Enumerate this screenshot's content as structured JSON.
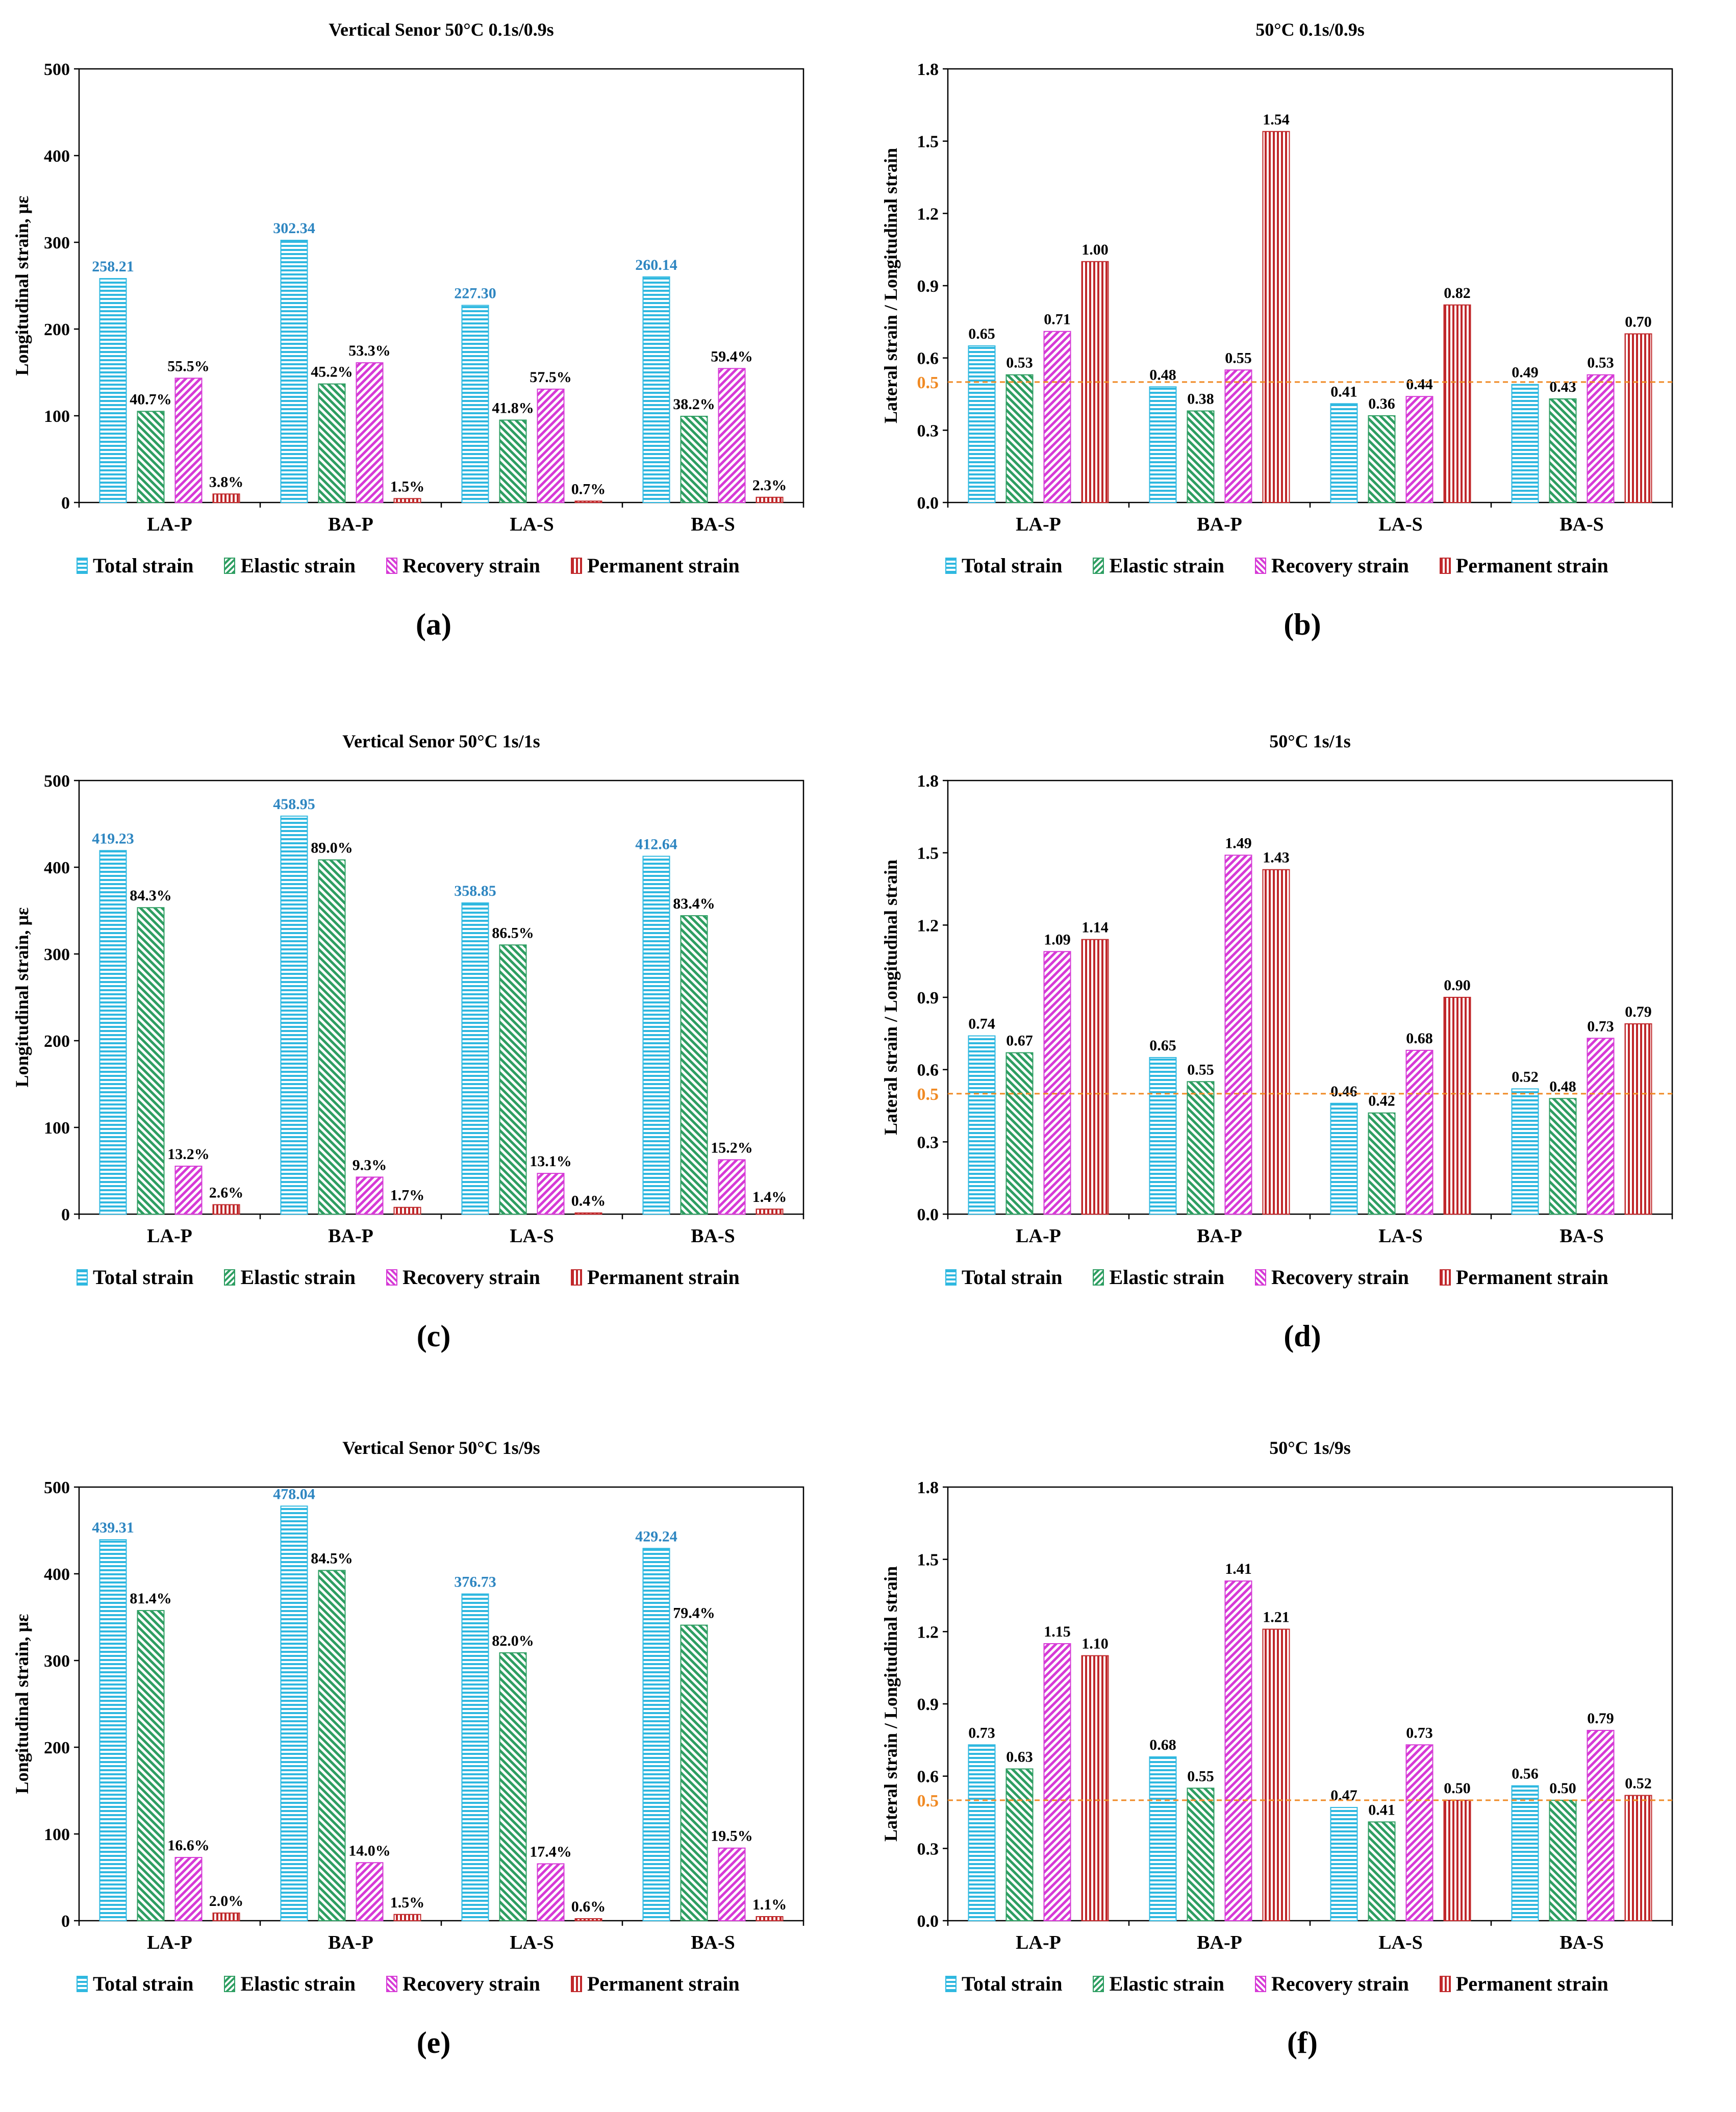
{
  "colors": {
    "total": "#2fb8e0",
    "elastic": "#2e9e62",
    "recovery": "#d63ad6",
    "permanent": "#c0282b",
    "total_label": "#2e86c1",
    "reference": "#f08a24"
  },
  "legend": [
    "Total strain",
    "Elastic strain",
    "Recovery strain",
    "Permanent strain"
  ],
  "chart_data": [
    {
      "panel": "(a)",
      "type": "bar",
      "title": "Vertical Senor  50°C 0.1s/0.9s",
      "ylabel": "Longitudinal strain, με",
      "xlabel": "",
      "ylim": [
        0,
        500
      ],
      "yticks": [
        "0",
        "100",
        "200",
        "300",
        "400",
        "500"
      ],
      "categories": [
        "LA-P",
        "BA-P",
        "LA-S",
        "BA-S"
      ],
      "series": [
        {
          "name": "Total strain",
          "values": [
            258.21,
            302.34,
            227.3,
            260.14
          ],
          "labels": [
            "258.21",
            "302.34",
            "227.30",
            "260.14"
          ]
        },
        {
          "name": "Elastic strain",
          "values": [
            105.1,
            136.7,
            95.0,
            99.4
          ],
          "labels": [
            "40.7%",
            "45.2%",
            "41.8%",
            "38.2%"
          ]
        },
        {
          "name": "Recovery strain",
          "values": [
            143.3,
            161.1,
            130.7,
            154.5
          ],
          "labels": [
            "55.5%",
            "53.3%",
            "57.5%",
            "59.4%"
          ]
        },
        {
          "name": "Permanent strain",
          "values": [
            9.8,
            4.5,
            1.6,
            6.0
          ],
          "labels": [
            "3.8%",
            "1.5%",
            "0.7%",
            "2.3%"
          ]
        }
      ]
    },
    {
      "panel": "(b)",
      "type": "bar",
      "title": "50°C 0.1s/0.9s",
      "ylabel": "Lateral strain / Longitudinal strain",
      "xlabel": "",
      "ylim": [
        0,
        1.8
      ],
      "yticks": [
        "0.0",
        "0.3",
        "0.6",
        "0.9",
        "1.2",
        "1.5",
        "1.8"
      ],
      "reference_line": {
        "value": 0.5,
        "label": "0.5"
      },
      "categories": [
        "LA-P",
        "BA-P",
        "LA-S",
        "BA-S"
      ],
      "series": [
        {
          "name": "Total strain",
          "values": [
            0.65,
            0.48,
            0.41,
            0.49
          ],
          "labels": [
            "0.65",
            "0.48",
            "0.41",
            "0.49"
          ]
        },
        {
          "name": "Elastic strain",
          "values": [
            0.53,
            0.38,
            0.36,
            0.43
          ],
          "labels": [
            "0.53",
            "0.38",
            "0.36",
            "0.43"
          ]
        },
        {
          "name": "Recovery strain",
          "values": [
            0.71,
            0.55,
            0.44,
            0.53
          ],
          "labels": [
            "0.71",
            "0.55",
            "0.44",
            "0.53"
          ]
        },
        {
          "name": "Permanent strain",
          "values": [
            1.0,
            1.54,
            0.82,
            0.7
          ],
          "labels": [
            "1.00",
            "1.54",
            "0.82",
            "0.70"
          ]
        }
      ]
    },
    {
      "panel": "(c)",
      "type": "bar",
      "title": "Vertical Senor  50°C 1s/1s",
      "ylabel": "Longitudinal strain, με",
      "xlabel": "",
      "ylim": [
        0,
        500
      ],
      "yticks": [
        "0",
        "100",
        "200",
        "300",
        "400",
        "500"
      ],
      "categories": [
        "LA-P",
        "BA-P",
        "LA-S",
        "BA-S"
      ],
      "series": [
        {
          "name": "Total strain",
          "values": [
            419.23,
            458.95,
            358.85,
            412.64
          ],
          "labels": [
            "419.23",
            "458.95",
            "358.85",
            "412.64"
          ]
        },
        {
          "name": "Elastic strain",
          "values": [
            353.4,
            408.5,
            310.4,
            344.1
          ],
          "labels": [
            "84.3%",
            "89.0%",
            "86.5%",
            "83.4%"
          ]
        },
        {
          "name": "Recovery strain",
          "values": [
            55.3,
            42.7,
            47.0,
            62.7
          ],
          "labels": [
            "13.2%",
            "9.3%",
            "13.1%",
            "15.2%"
          ]
        },
        {
          "name": "Permanent strain",
          "values": [
            10.9,
            7.8,
            1.4,
            5.8
          ],
          "labels": [
            "2.6%",
            "1.7%",
            "0.4%",
            "1.4%"
          ]
        }
      ]
    },
    {
      "panel": "(d)",
      "type": "bar",
      "title": "50°C 1s/1s",
      "ylabel": "Lateral strain / Longitudinal strain",
      "xlabel": "",
      "ylim": [
        0,
        1.8
      ],
      "yticks": [
        "0.0",
        "0.3",
        "0.6",
        "0.9",
        "1.2",
        "1.5",
        "1.8"
      ],
      "reference_line": {
        "value": 0.5,
        "label": "0.5"
      },
      "categories": [
        "LA-P",
        "BA-P",
        "LA-S",
        "BA-S"
      ],
      "series": [
        {
          "name": "Total strain",
          "values": [
            0.74,
            0.65,
            0.46,
            0.52
          ],
          "labels": [
            "0.74",
            "0.65",
            "0.46",
            "0.52"
          ]
        },
        {
          "name": "Elastic strain",
          "values": [
            0.67,
            0.55,
            0.42,
            0.48
          ],
          "labels": [
            "0.67",
            "0.55",
            "0.42",
            "0.48"
          ]
        },
        {
          "name": "Recovery strain",
          "values": [
            1.09,
            1.49,
            0.68,
            0.73
          ],
          "labels": [
            "1.09",
            "1.49",
            "0.68",
            "0.73"
          ]
        },
        {
          "name": "Permanent strain",
          "values": [
            1.14,
            1.43,
            0.9,
            0.79
          ],
          "labels": [
            "1.14",
            "1.43",
            "0.90",
            "0.79"
          ]
        }
      ]
    },
    {
      "panel": "(e)",
      "type": "bar",
      "title": "Vertical Senor  50°C 1s/9s",
      "ylabel": "Longitudinal strain, με",
      "xlabel": "",
      "ylim": [
        0,
        500
      ],
      "yticks": [
        "0",
        "100",
        "200",
        "300",
        "400",
        "500"
      ],
      "categories": [
        "LA-P",
        "BA-P",
        "LA-S",
        "BA-S"
      ],
      "series": [
        {
          "name": "Total strain",
          "values": [
            439.31,
            478.04,
            376.73,
            429.24
          ],
          "labels": [
            "439.31",
            "478.04",
            "376.73",
            "429.24"
          ]
        },
        {
          "name": "Elastic strain",
          "values": [
            357.6,
            403.9,
            308.9,
            340.8
          ],
          "labels": [
            "81.4%",
            "84.5%",
            "82.0%",
            "79.4%"
          ]
        },
        {
          "name": "Recovery strain",
          "values": [
            72.9,
            66.9,
            65.6,
            83.7
          ],
          "labels": [
            "16.6%",
            "14.0%",
            "17.4%",
            "19.5%"
          ]
        },
        {
          "name": "Permanent strain",
          "values": [
            8.8,
            7.2,
            2.3,
            4.7
          ],
          "labels": [
            "2.0%",
            "1.5%",
            "0.6%",
            "1.1%"
          ]
        }
      ]
    },
    {
      "panel": "(f)",
      "type": "bar",
      "title": "50°C 1s/9s",
      "ylabel": "Lateral strain / Longitudinal strain",
      "xlabel": "",
      "ylim": [
        0,
        1.8
      ],
      "yticks": [
        "0.0",
        "0.3",
        "0.6",
        "0.9",
        "1.2",
        "1.5",
        "1.8"
      ],
      "reference_line": {
        "value": 0.5,
        "label": "0.5"
      },
      "categories": [
        "LA-P",
        "BA-P",
        "LA-S",
        "BA-S"
      ],
      "series": [
        {
          "name": "Total strain",
          "values": [
            0.73,
            0.68,
            0.47,
            0.56
          ],
          "labels": [
            "0.73",
            "0.68",
            "0.47",
            "0.56"
          ]
        },
        {
          "name": "Elastic strain",
          "values": [
            0.63,
            0.55,
            0.41,
            0.5
          ],
          "labels": [
            "0.63",
            "0.55",
            "0.41",
            "0.50"
          ]
        },
        {
          "name": "Recovery strain",
          "values": [
            1.15,
            1.41,
            0.73,
            0.79
          ],
          "labels": [
            "1.15",
            "1.41",
            "0.73",
            "0.79"
          ]
        },
        {
          "name": "Permanent strain",
          "values": [
            1.1,
            1.21,
            0.5,
            0.52
          ],
          "labels": [
            "1.10",
            "1.21",
            "0.50",
            "0.52"
          ]
        }
      ]
    }
  ]
}
